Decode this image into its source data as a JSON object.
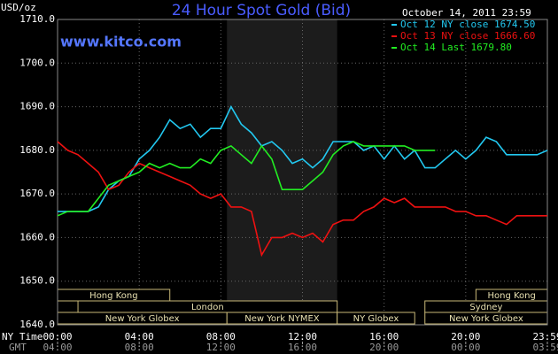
{
  "chart_data": {
    "type": "line",
    "title": "24 Hour Spot Gold (Bid)",
    "subtitle": "October 14, 2011 23:59",
    "source": "www.kitco.com",
    "ylabel": "USD/oz",
    "xlabel": "NY Time",
    "x2label": "GMT",
    "x": [
      0,
      0.5,
      1,
      1.5,
      2,
      2.5,
      3,
      3.5,
      4,
      4.5,
      5,
      5.5,
      6,
      6.5,
      7,
      7.5,
      8,
      8.5,
      9,
      9.5,
      10,
      10.5,
      11,
      11.5,
      12,
      12.5,
      13,
      13.5,
      14,
      14.5,
      15,
      15.5,
      16,
      16.5,
      17,
      17.5,
      18,
      18.5,
      19,
      19.5,
      20,
      20.5,
      21,
      21.5,
      22,
      22.5,
      23,
      23.5,
      24
    ],
    "series": [
      {
        "name": "Oct 12 NY close 1674.50",
        "color": "#22c8f0",
        "values": [
          1666,
          1666,
          1666,
          1666,
          1667,
          1671,
          1673,
          1674,
          1678,
          1680,
          1683,
          1687,
          1685,
          1686,
          1683,
          1685,
          1685,
          1690,
          1686,
          1684,
          1681,
          1682,
          1680,
          1677,
          1678,
          1676,
          1678,
          1682,
          1682,
          1682,
          1680,
          1681,
          1678,
          1681,
          1678,
          1680,
          1676,
          1676,
          1678,
          1680,
          1678,
          1680,
          1683,
          1682,
          1679,
          1679,
          1679,
          1679,
          1680
        ]
      },
      {
        "name": "Oct 13 NY close 1666.60",
        "color": "#ee1111",
        "values": [
          1682,
          1680,
          1679,
          1677,
          1675,
          1671,
          1672,
          1675,
          1677,
          1676,
          1675,
          1674,
          1673,
          1672,
          1670,
          1669,
          1670,
          1667,
          1667,
          1666,
          1656,
          1660,
          1660,
          1661,
          1660,
          1661,
          1659,
          1663,
          1664,
          1664,
          1666,
          1667,
          1669,
          1668,
          1669,
          1667,
          1667,
          1667,
          1667,
          1666,
          1666,
          1665,
          1665,
          1664,
          1663,
          1665,
          1665,
          1665,
          1665
        ]
      },
      {
        "name": "Oct 14 Last 1679.80",
        "color": "#22ee22",
        "values": [
          1665,
          1666,
          1666,
          1666,
          1669,
          1672,
          1673,
          1674,
          1675,
          1677,
          1676,
          1677,
          1676,
          1676,
          1678,
          1677,
          1680,
          1681,
          1679,
          1677,
          1681,
          1678,
          1671,
          1671,
          1671,
          1673,
          1675,
          1679,
          1681,
          1682,
          1681,
          1681,
          1681,
          1681,
          1681,
          1680,
          1680,
          1680,
          null,
          null,
          null,
          null,
          null,
          null,
          null,
          null,
          null,
          null,
          null
        ]
      }
    ],
    "xlim": [
      0,
      24
    ],
    "ylim": [
      1640,
      1710
    ],
    "xticks": [
      {
        "value": 0,
        "label": "00:00"
      },
      {
        "value": 4,
        "label": "04:00"
      },
      {
        "value": 8,
        "label": "08:00"
      },
      {
        "value": 12,
        "label": "12:00"
      },
      {
        "value": 16,
        "label": "16:00"
      },
      {
        "value": 20,
        "label": "20:00"
      },
      {
        "value": 24,
        "label": "23:59"
      }
    ],
    "x2ticks": [
      {
        "value": 0,
        "label": "04:00"
      },
      {
        "value": 4,
        "label": "08:00"
      },
      {
        "value": 8,
        "label": "12:00"
      },
      {
        "value": 12,
        "label": "16:00"
      },
      {
        "value": 16,
        "label": "20:00"
      },
      {
        "value": 20,
        "label": "00:00"
      },
      {
        "value": 24,
        "label": "03:59"
      }
    ],
    "yticks": [
      {
        "value": 1640,
        "label": "1640.0"
      },
      {
        "value": 1650,
        "label": "1650.0"
      },
      {
        "value": 1660,
        "label": "1660.0"
      },
      {
        "value": 1670,
        "label": "1670.0"
      },
      {
        "value": 1680,
        "label": "1680.0"
      },
      {
        "value": 1690,
        "label": "1690.0"
      },
      {
        "value": 1700,
        "label": "1700.0"
      },
      {
        "value": 1710,
        "label": "1710.0"
      }
    ],
    "grid": true,
    "sessions": [
      "Hong Kong",
      "London",
      "New York Globex",
      "New York NYMEX",
      "NY Globex",
      "Hong Kong",
      "Sydney",
      "New York Globex"
    ]
  }
}
